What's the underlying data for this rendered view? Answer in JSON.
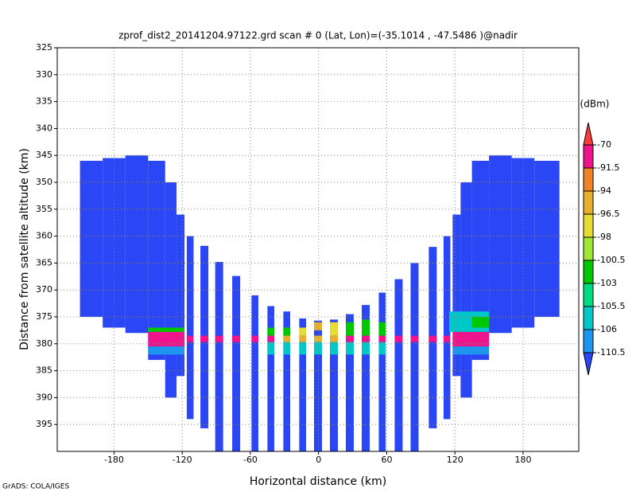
{
  "chart_data": {
    "type": "heatmap",
    "title": "zprof_dist2_20141204.97122.grd  scan # 0  (Lat, Lon)=(-35.1014 , -47.5486 )@nadir",
    "x_label": "Horizontal distance (km)",
    "y_label": "Distance from satellite altitude (km)",
    "colorbar_label": "(dBm)",
    "footer": "GrADS: COLA/IGES",
    "xlim": [
      -230,
      229
    ],
    "xticks": [
      -180,
      -120,
      -60,
      0,
      60,
      120,
      180
    ],
    "ylim": [
      325,
      400
    ],
    "y_inverted": true,
    "yticks": [
      325,
      330,
      335,
      340,
      345,
      350,
      355,
      360,
      365,
      370,
      375,
      380,
      385,
      390,
      395
    ],
    "grid": true,
    "levels": [
      -110.5,
      -106,
      -105.5,
      -103,
      -100.5,
      -98,
      -96.5,
      -94,
      -91.5,
      -70
    ],
    "colors": [
      "#2a46f5",
      "#1e96f0",
      "#00c8c8",
      "#00dc82",
      "#00c800",
      "#a0e632",
      "#e6dc32",
      "#e6af2d",
      "#f08228",
      "#f0148c",
      "#fa3c3c"
    ],
    "cells": [
      [
        -210,
        -190,
        346,
        375,
        -115
      ],
      [
        -190,
        -170,
        345.5,
        377,
        -115
      ],
      [
        -170,
        -150,
        345,
        378,
        -115
      ],
      [
        -150,
        -135,
        346,
        383,
        -115
      ],
      [
        -135,
        -125,
        350,
        390,
        -115
      ],
      [
        -125,
        -118,
        356,
        386,
        -115
      ],
      [
        -116,
        -110,
        360,
        394,
        -115
      ],
      [
        -104,
        -97,
        361.8,
        395.7,
        -115
      ],
      [
        -91,
        -84,
        364.8,
        400,
        -115
      ],
      [
        -76,
        -69,
        367.4,
        400,
        -115
      ],
      [
        -59,
        -53,
        371,
        400,
        -115
      ],
      [
        -45,
        -39,
        373,
        400,
        -115
      ],
      [
        -31,
        -25,
        374,
        400,
        -115
      ],
      [
        -17,
        -11,
        375.3,
        400,
        -115
      ],
      [
        -4,
        3,
        375.7,
        400,
        -115
      ],
      [
        10,
        17,
        375.5,
        400,
        -115
      ],
      [
        24,
        31,
        374.5,
        400,
        -115
      ],
      [
        38,
        45,
        372.8,
        400,
        -115
      ],
      [
        53,
        59,
        370.5,
        400,
        -115
      ],
      [
        67,
        74,
        368,
        400,
        -115
      ],
      [
        81,
        88,
        365,
        400,
        -115
      ],
      [
        97,
        104,
        362,
        395.7,
        -115
      ],
      [
        110,
        116,
        360,
        394,
        -115
      ],
      [
        118,
        125,
        356,
        386,
        -115
      ],
      [
        125,
        135,
        350,
        390,
        -115
      ],
      [
        135,
        150,
        346,
        383,
        -115
      ],
      [
        150,
        170,
        345,
        378,
        -115
      ],
      [
        170,
        190,
        345.5,
        377,
        -115
      ],
      [
        190,
        212,
        346,
        375,
        -115
      ],
      [
        -150,
        -118,
        377,
        377.8,
        -102
      ],
      [
        -150,
        -118,
        377.8,
        380.5,
        -80
      ],
      [
        -150,
        -118,
        380.5,
        382,
        -108
      ],
      [
        -116,
        -110,
        378.5,
        379.7,
        -80
      ],
      [
        -104,
        -97,
        378.5,
        379.7,
        -80
      ],
      [
        -91,
        -84,
        378.5,
        379.7,
        -80
      ],
      [
        -76,
        -69,
        378.5,
        379.7,
        -80
      ],
      [
        -59,
        -53,
        378.5,
        379.7,
        -80
      ],
      [
        -45,
        -39,
        377,
        378.5,
        -102
      ],
      [
        -45,
        -39,
        378.5,
        379.7,
        -80
      ],
      [
        -45,
        -39,
        379.7,
        382,
        -105.8
      ],
      [
        -31,
        -25,
        377,
        378.5,
        -102
      ],
      [
        -31,
        -25,
        378.5,
        379.7,
        -95
      ],
      [
        -31,
        -25,
        379.7,
        382,
        -105.8
      ],
      [
        -17,
        -11,
        377,
        378.5,
        -97
      ],
      [
        -17,
        -11,
        378.5,
        379.7,
        -95
      ],
      [
        -17,
        -11,
        379.7,
        382,
        -105.8
      ],
      [
        -4,
        3,
        376,
        377.5,
        -95
      ],
      [
        -4,
        3,
        378.5,
        379.7,
        -95
      ],
      [
        -4,
        3,
        379.7,
        382,
        -105.8
      ],
      [
        10,
        17,
        376,
        378.5,
        -97
      ],
      [
        10,
        17,
        378.5,
        379.7,
        -95
      ],
      [
        10,
        17,
        379.7,
        382,
        -105.8
      ],
      [
        24,
        31,
        376,
        378.5,
        -102
      ],
      [
        24,
        31,
        378.5,
        379.7,
        -80
      ],
      [
        24,
        31,
        379.7,
        382,
        -105.8
      ],
      [
        38,
        45,
        375.5,
        378.5,
        -102
      ],
      [
        38,
        45,
        378.5,
        379.7,
        -80
      ],
      [
        38,
        45,
        379.7,
        382,
        -105.8
      ],
      [
        53,
        59,
        376,
        378.5,
        -102
      ],
      [
        53,
        59,
        378.5,
        379.7,
        -80
      ],
      [
        53,
        59,
        379.7,
        382,
        -105.8
      ],
      [
        67,
        74,
        378.5,
        379.7,
        -80
      ],
      [
        81,
        88,
        378.5,
        379.7,
        -80
      ],
      [
        97,
        104,
        378.5,
        379.7,
        -80
      ],
      [
        110,
        116,
        378.5,
        379.7,
        -80
      ],
      [
        115,
        150,
        374,
        377.8,
        -105.8
      ],
      [
        135,
        150,
        375,
        377,
        -102
      ],
      [
        118,
        150,
        377.8,
        380.5,
        -80
      ],
      [
        118,
        150,
        380.5,
        382,
        -108
      ]
    ]
  }
}
